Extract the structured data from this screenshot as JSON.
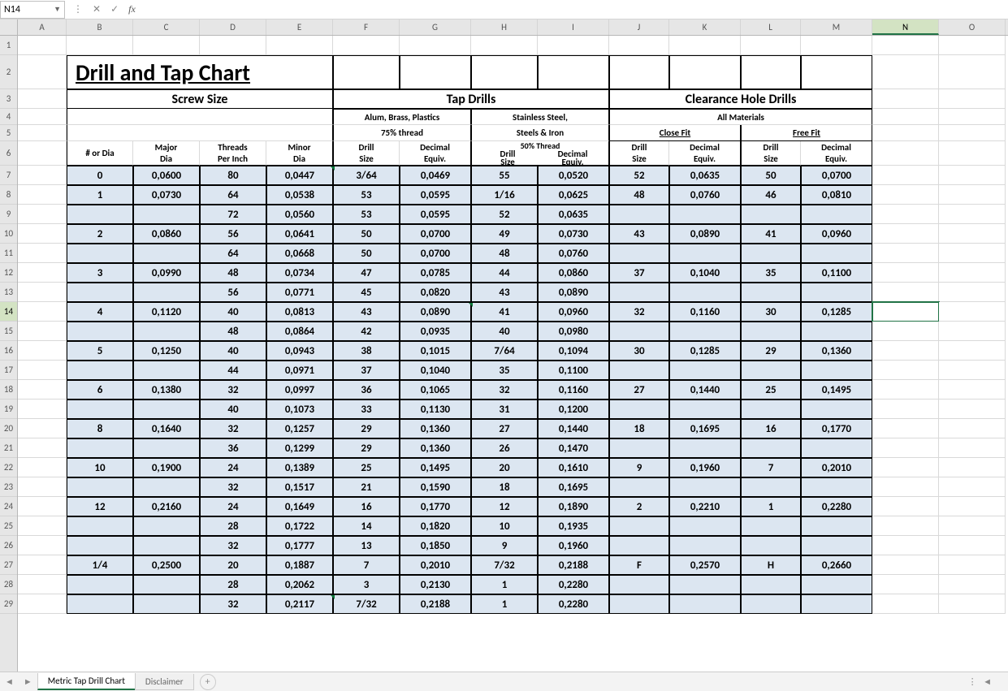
{
  "app": {
    "active_cell_ref": "N14",
    "fx_label": "fx"
  },
  "columns": [
    {
      "letter": "A",
      "width": 60
    },
    {
      "letter": "B",
      "width": 82
    },
    {
      "letter": "C",
      "width": 82
    },
    {
      "letter": "D",
      "width": 82
    },
    {
      "letter": "E",
      "width": 82
    },
    {
      "letter": "F",
      "width": 82
    },
    {
      "letter": "G",
      "width": 88
    },
    {
      "letter": "H",
      "width": 82
    },
    {
      "letter": "I",
      "width": 88
    },
    {
      "letter": "J",
      "width": 74
    },
    {
      "letter": "K",
      "width": 88
    },
    {
      "letter": "L",
      "width": 74
    },
    {
      "letter": "M",
      "width": 88
    },
    {
      "letter": "N",
      "width": 82
    },
    {
      "letter": "O",
      "width": 82
    }
  ],
  "row_count": 29,
  "selected_col": "N",
  "selected_row": 14,
  "title": "Drill and Tap Chart",
  "group_headers": {
    "screw": "Screw Size",
    "tap": "Tap Drills",
    "clear": "Clearance Hole Drills"
  },
  "sub_headers": {
    "alum1": "Alum, Brass, Plastics",
    "alum2": "75% thread",
    "steel1": "Stainless Steel,",
    "steel2": "Steels & Iron",
    "steel3": "50% Thread",
    "allmat": "All Materials",
    "close": "Close Fit",
    "free": "Free Fit"
  },
  "col_labels": {
    "num": "# or Dia",
    "major1": "Major",
    "major2": "Dia",
    "tpi1": "Threads",
    "tpi2": "Per Inch",
    "minor1": "Minor",
    "minor2": "Dia",
    "ds1": "Drill",
    "ds2": "Size",
    "de1": "Decimal",
    "de2": "Equiv."
  },
  "rows": [
    {
      "tri_f": true,
      "b": "0",
      "c": "0,0600",
      "d": "80",
      "e": "0,0447",
      "f": "3/64",
      "g": "0,0469",
      "h": "55",
      "i": "0,0520",
      "j": "52",
      "k": "0,0635",
      "l": "50",
      "m": "0,0700"
    },
    {
      "b": "1",
      "c": "0,0730",
      "d": "64",
      "e": "0,0538",
      "f": "53",
      "g": "0,0595",
      "h": "1/16",
      "i": "0,0625",
      "j": "48",
      "k": "0,0760",
      "l": "46",
      "m": "0,0810"
    },
    {
      "b": "",
      "c": "",
      "d": "72",
      "e": "0,0560",
      "f": "53",
      "g": "0,0595",
      "h": "52",
      "i": "0,0635",
      "j": "",
      "k": "",
      "l": "",
      "m": ""
    },
    {
      "b": "2",
      "c": "0,0860",
      "d": "56",
      "e": "0,0641",
      "f": "50",
      "g": "0,0700",
      "h": "49",
      "i": "0,0730",
      "j": "43",
      "k": "0,0890",
      "l": "41",
      "m": "0,0960"
    },
    {
      "b": "",
      "c": "",
      "d": "64",
      "e": "0,0668",
      "f": "50",
      "g": "0,0700",
      "h": "48",
      "i": "0,0760",
      "j": "",
      "k": "",
      "l": "",
      "m": ""
    },
    {
      "b": "3",
      "c": "0,0990",
      "d": "48",
      "e": "0,0734",
      "f": "47",
      "g": "0,0785",
      "h": "44",
      "i": "0,0860",
      "j": "37",
      "k": "0,1040",
      "l": "35",
      "m": "0,1100"
    },
    {
      "b": "",
      "c": "",
      "d": "56",
      "e": "0,0771",
      "f": "45",
      "g": "0,0820",
      "h": "43",
      "i": "0,0890",
      "j": "",
      "k": "",
      "l": "",
      "m": ""
    },
    {
      "tri_h": true,
      "b": "4",
      "c": "0,1120",
      "d": "40",
      "e": "0,0813",
      "f": "43",
      "g": "0,0890",
      "h": "41",
      "i": "0,0960",
      "j": "32",
      "k": "0,1160",
      "l": "30",
      "m": "0,1285"
    },
    {
      "b": "",
      "c": "",
      "d": "48",
      "e": "0,0864",
      "f": "42",
      "g": "0,0935",
      "h": "40",
      "i": "0,0980",
      "j": "",
      "k": "",
      "l": "",
      "m": ""
    },
    {
      "b": "5",
      "c": "0,1250",
      "d": "40",
      "e": "0,0943",
      "f": "38",
      "g": "0,1015",
      "h": "7/64",
      "i": "0,1094",
      "j": "30",
      "k": "0,1285",
      "l": "29",
      "m": "0,1360"
    },
    {
      "b": "",
      "c": "",
      "d": "44",
      "e": "0,0971",
      "f": "37",
      "g": "0,1040",
      "h": "35",
      "i": "0,1100",
      "j": "",
      "k": "",
      "l": "",
      "m": ""
    },
    {
      "b": "6",
      "c": "0,1380",
      "d": "32",
      "e": "0,0997",
      "f": "36",
      "g": "0,1065",
      "h": "32",
      "i": "0,1160",
      "j": "27",
      "k": "0,1440",
      "l": "25",
      "m": "0,1495"
    },
    {
      "b": "",
      "c": "",
      "d": "40",
      "e": "0,1073",
      "f": "33",
      "g": "0,1130",
      "h": "31",
      "i": "0,1200",
      "j": "",
      "k": "",
      "l": "",
      "m": ""
    },
    {
      "b": "8",
      "c": "0,1640",
      "d": "32",
      "e": "0,1257",
      "f": "29",
      "g": "0,1360",
      "h": "27",
      "i": "0,1440",
      "j": "18",
      "k": "0,1695",
      "l": "16",
      "m": "0,1770"
    },
    {
      "b": "",
      "c": "",
      "d": "36",
      "e": "0,1299",
      "f": "29",
      "g": "0,1360",
      "h": "26",
      "i": "0,1470",
      "j": "",
      "k": "",
      "l": "",
      "m": ""
    },
    {
      "b": "10",
      "c": "0,1900",
      "d": "24",
      "e": "0,1389",
      "f": "25",
      "g": "0,1495",
      "h": "20",
      "i": "0,1610",
      "j": "9",
      "k": "0,1960",
      "l": "7",
      "m": "0,2010"
    },
    {
      "b": "",
      "c": "",
      "d": "32",
      "e": "0,1517",
      "f": "21",
      "g": "0,1590",
      "h": "18",
      "i": "0,1695",
      "j": "",
      "k": "",
      "l": "",
      "m": ""
    },
    {
      "b": "12",
      "c": "0,2160",
      "d": "24",
      "e": "0,1649",
      "f": "16",
      "g": "0,1770",
      "h": "12",
      "i": "0,1890",
      "j": "2",
      "k": "0,2210",
      "l": "1",
      "m": "0,2280"
    },
    {
      "b": "",
      "c": "",
      "d": "28",
      "e": "0,1722",
      "f": "14",
      "g": "0,1820",
      "h": "10",
      "i": "0,1935",
      "j": "",
      "k": "",
      "l": "",
      "m": ""
    },
    {
      "b": "",
      "c": "",
      "d": "32",
      "e": "0,1777",
      "f": "13",
      "g": "0,1850",
      "h": "9",
      "i": "0,1960",
      "j": "",
      "k": "",
      "l": "",
      "m": ""
    },
    {
      "b": "1/4",
      "c": "0,2500",
      "d": "20",
      "e": "0,1887",
      "f": "7",
      "g": "0,2010",
      "h": "7/32",
      "i": "0,2188",
      "j": "F",
      "k": "0,2570",
      "l": "H",
      "m": "0,2660"
    },
    {
      "b": "",
      "c": "",
      "d": "28",
      "e": "0,2062",
      "f": "3",
      "g": "0,2130",
      "h": "1",
      "i": "0,2280",
      "j": "",
      "k": "",
      "l": "",
      "m": ""
    },
    {
      "tri_f": true,
      "b": "",
      "c": "",
      "d": "32",
      "e": "0,2117",
      "f": "7/32",
      "g": "0,2188",
      "h": "1",
      "i": "0,2280",
      "j": "",
      "k": "",
      "l": "",
      "m": ""
    }
  ],
  "tabs": {
    "active": "Metric Tap Drill Chart",
    "other": "Disclaimer"
  },
  "colors": {
    "data_bg": "#dce6f1",
    "grid": "#d9d9d9",
    "header_bg": "#e6e6e6",
    "accent": "#217346"
  }
}
